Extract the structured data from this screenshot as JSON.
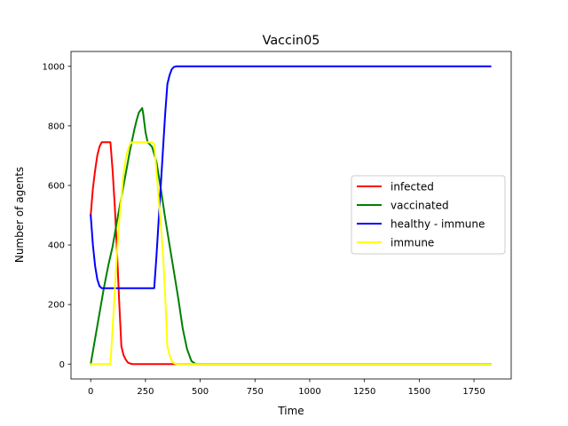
{
  "chart_data": {
    "type": "line",
    "title": "Vaccin05",
    "xlabel": "Time",
    "ylabel": "Number of agents",
    "xlim": [
      -90,
      1920
    ],
    "ylim": [
      -50,
      1050
    ],
    "xticks": [
      0,
      250,
      500,
      750,
      1000,
      1250,
      1500,
      1750
    ],
    "yticks": [
      0,
      200,
      400,
      600,
      800,
      1000
    ],
    "grid": false,
    "legend_position": "center-right",
    "series": [
      {
        "name": "infected",
        "color": "#ff0000",
        "x": [
          0,
          10,
          20,
          30,
          40,
          50,
          60,
          70,
          80,
          90,
          100,
          110,
          120,
          130,
          140,
          150,
          160,
          170,
          180,
          190,
          200,
          250,
          300,
          350,
          400,
          500,
          1000,
          1825
        ],
        "y": [
          500,
          590,
          650,
          700,
          730,
          745,
          745,
          745,
          745,
          745,
          650,
          530,
          380,
          210,
          60,
          30,
          15,
          5,
          2,
          0,
          0,
          0,
          0,
          0,
          0,
          0,
          0,
          0
        ]
      },
      {
        "name": "vaccinated",
        "color": "#008000",
        "x": [
          0,
          20,
          40,
          60,
          80,
          100,
          120,
          140,
          160,
          180,
          200,
          210,
          220,
          230,
          235,
          240,
          250,
          260,
          280,
          300,
          320,
          340,
          360,
          380,
          400,
          420,
          440,
          460,
          480,
          500,
          1000,
          1825
        ],
        "y": [
          0,
          85,
          170,
          255,
          330,
          395,
          480,
          560,
          640,
          720,
          790,
          820,
          845,
          855,
          860,
          840,
          780,
          745,
          730,
          680,
          590,
          490,
          400,
          310,
          220,
          120,
          50,
          10,
          0,
          0,
          0,
          0
        ]
      },
      {
        "name": "healthy - immune",
        "color": "#0000ff",
        "x": [
          0,
          10,
          20,
          30,
          40,
          50,
          60,
          80,
          100,
          150,
          200,
          250,
          280,
          290,
          300,
          310,
          320,
          330,
          340,
          350,
          360,
          370,
          380,
          390,
          400,
          500,
          1000,
          1500,
          1825
        ],
        "y": [
          500,
          400,
          330,
          285,
          262,
          255,
          255,
          255,
          255,
          255,
          255,
          255,
          255,
          255,
          360,
          480,
          600,
          720,
          840,
          940,
          970,
          990,
          998,
          1000,
          1000,
          1000,
          1000,
          1000,
          1000
        ]
      },
      {
        "name": "immune",
        "color": "#ffff00",
        "x": [
          0,
          90,
          100,
          110,
          120,
          130,
          140,
          150,
          160,
          170,
          180,
          190,
          200,
          250,
          280,
          290,
          300,
          310,
          320,
          330,
          340,
          350,
          360,
          370,
          380,
          390,
          400,
          500,
          1000,
          1825
        ],
        "y": [
          0,
          0,
          120,
          250,
          370,
          480,
          560,
          640,
          690,
          720,
          740,
          745,
          745,
          745,
          745,
          740,
          650,
          560,
          470,
          370,
          230,
          60,
          30,
          10,
          3,
          0,
          0,
          0,
          0,
          0
        ]
      }
    ]
  }
}
